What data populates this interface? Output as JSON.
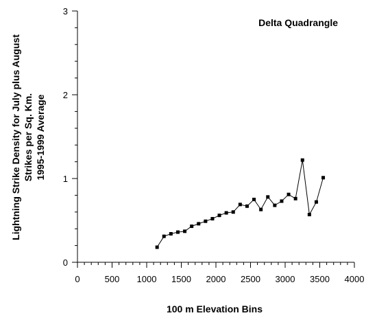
{
  "chart_data": {
    "type": "line",
    "title": "",
    "annotation": "Delta Quadrangle",
    "xlabel": "100 m Elevation Bins",
    "ylabel_lines": [
      "Lightning Strike Density for July plus August",
      "Strikes per Sq. Km.",
      "1995-1999 Average"
    ],
    "xlim": [
      0,
      4000
    ],
    "ylim": [
      0,
      3
    ],
    "x_ticks": [
      0,
      500,
      1000,
      1500,
      2000,
      2500,
      3000,
      3500,
      4000
    ],
    "x_tick_labels": [
      "0",
      "500",
      "1000",
      "1500",
      "2000",
      "2500",
      "3000",
      "3500",
      "4000"
    ],
    "y_ticks": [
      0,
      1,
      2,
      3
    ],
    "y_tick_labels": [
      "0",
      "1",
      "2",
      "3"
    ],
    "x_minor_step": 100,
    "y_minor_step": 0.2,
    "grid": false,
    "legend": "none",
    "marker": "square",
    "color": "#000000",
    "series": [
      {
        "x": [
          1150,
          1250,
          1350,
          1450,
          1550,
          1650,
          1750,
          1850,
          1950,
          2050,
          2150,
          2250,
          2350,
          2450,
          2550,
          2650,
          2750,
          2850,
          2950,
          3050,
          3150,
          3250,
          3350,
          3450,
          3550
        ],
        "y": [
          0.18,
          0.31,
          0.34,
          0.36,
          0.37,
          0.43,
          0.46,
          0.49,
          0.52,
          0.56,
          0.59,
          0.6,
          0.69,
          0.67,
          0.75,
          0.63,
          0.78,
          0.68,
          0.73,
          0.81,
          0.76,
          1.22,
          0.57,
          0.72,
          1.01
        ]
      }
    ]
  }
}
